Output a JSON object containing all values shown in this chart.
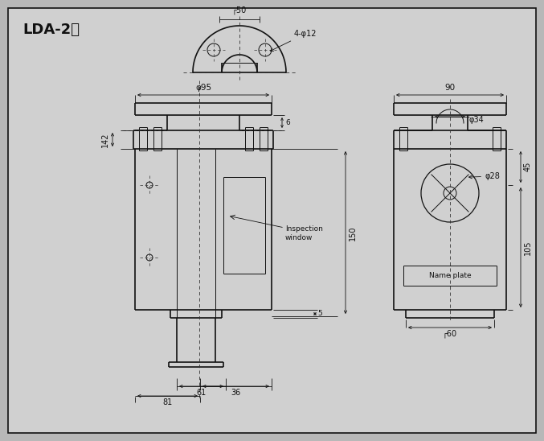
{
  "title": "LDA-2型",
  "bg_color": "#b8b8b8",
  "drawing_bg": "#d8d8d8",
  "line_color": "#111111",
  "annotations": {
    "top_width": "┌50",
    "bolt_holes": "4-φ12",
    "main_diameter": "φ95",
    "side_width": "90",
    "side_diameter_top": "φ34",
    "side_diameter_mid": "φ28",
    "height_main": "142",
    "height_right_top": "45",
    "height_right_bot": "105",
    "height_150": "150",
    "gap_6": "6",
    "gap_5": "5",
    "width_61": "61",
    "width_81": "81",
    "width_36": "36",
    "side_bottom": "┌60",
    "inspection": "Inspection\nwindow",
    "nameplate": "Name plate"
  }
}
